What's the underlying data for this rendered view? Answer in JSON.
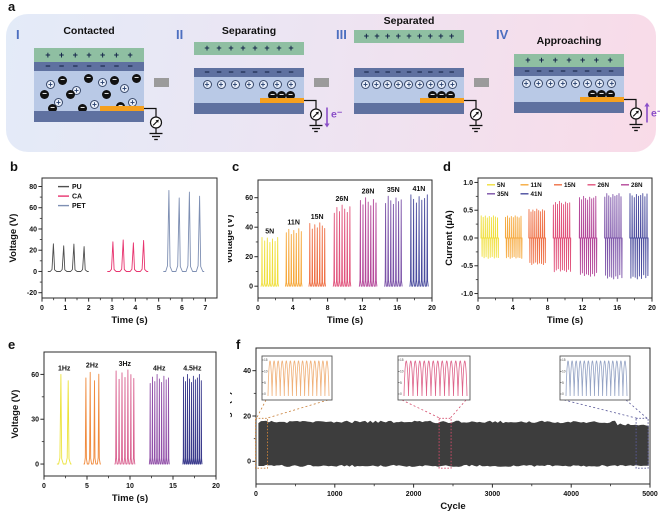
{
  "figure": {
    "panels": {
      "a": "a",
      "b": "b",
      "c": "c",
      "d": "d",
      "e": "e",
      "f": "f"
    }
  },
  "schematic": {
    "colors": {
      "bg_left": "#e3ebf8",
      "bg_mid": "#ede4f2",
      "bg_right": "#f9dbe8",
      "top_layer_green": "#8fbfa2",
      "film_slate": "#5f71a0",
      "substrate_light_blue": "#b9c9e6",
      "electrode_orange": "#f5a01e",
      "numeral_blue": "#4d6fc0",
      "electron_purple": "#8a4fc8",
      "arrow_gray": "#9b9b9b",
      "charge_navy": "#15254a"
    },
    "stages": [
      {
        "numeral": "I",
        "title": "Contacted",
        "top_plus_count": 7,
        "surface_minus_count": 7,
        "scatter_plus_count": 7,
        "scatter_minus_count": 10
      },
      {
        "numeral": "II",
        "title": "Separating",
        "top_plus_count": 8,
        "surface_minus_count": 8,
        "row_plus_count": 7,
        "trapped_minus_count": 3,
        "electron_label": "e⁻",
        "electron_dir": "down"
      },
      {
        "numeral": "III",
        "title": "Separated",
        "top_plus_count": 9,
        "surface_minus_count": 9,
        "row_plus_count": 9,
        "trapped_minus_count": 3
      },
      {
        "numeral": "IV",
        "title": "Approaching",
        "top_plus_count": 7,
        "surface_minus_count": 8,
        "row_plus_count": 8,
        "trapped_minus_count": 3,
        "electron_label": "e⁻",
        "electron_dir": "up"
      }
    ]
  },
  "chart_data": [
    {
      "id": "b",
      "type": "line",
      "series_type": "spike",
      "xlabel": "Time (s)",
      "ylabel": "Voltage (V)",
      "x": {
        "min": 0,
        "max": 7.5,
        "ticks": [
          0,
          1,
          2,
          3,
          4,
          5,
          6,
          7
        ],
        "minor": [
          0.5,
          1.5,
          2.5,
          3.5,
          4.5,
          5.5,
          6.5
        ]
      },
      "y": {
        "min": -25,
        "max": 88,
        "ticks": [
          -20,
          0,
          20,
          40,
          60,
          80
        ],
        "minor": [
          -10,
          10,
          30,
          50,
          70
        ]
      },
      "legend": {
        "orient": "v",
        "items": [
          {
            "label": "PU",
            "color": "#4f4f4f"
          },
          {
            "label": "CA",
            "color": "#e8346f"
          },
          {
            "label": "PET",
            "color": "#7e8fb3"
          }
        ]
      },
      "groups": [
        {
          "name": "PU",
          "color": "#4f4f4f",
          "x0": 0.25,
          "x1": 2.0,
          "peaks": 4,
          "amp": 26
        },
        {
          "name": "CA",
          "color": "#e8346f",
          "x0": 2.8,
          "x1": 4.55,
          "peaks": 4,
          "amp": 30
        },
        {
          "name": "PET",
          "color": "#7e8fb3",
          "x0": 5.2,
          "x1": 6.95,
          "peaks": 4,
          "amp": 77
        }
      ]
    },
    {
      "id": "c",
      "type": "line",
      "series_type": "spike",
      "show_group_labels": true,
      "xlabel": "Time (s)",
      "ylabel": "Voltage (V)",
      "x": {
        "min": 0,
        "max": 20,
        "ticks": [
          0,
          4,
          8,
          12,
          16,
          20
        ],
        "minor": [
          2,
          6,
          10,
          14,
          18
        ]
      },
      "y": {
        "min": -8,
        "max": 72,
        "ticks": [
          0,
          20,
          40,
          60
        ],
        "minor": [
          10,
          30,
          50
        ]
      },
      "groups": [
        {
          "label": "5N",
          "color": "#f0df3c",
          "x0": 0.3,
          "x1": 2.4,
          "peaks": 7,
          "amp": 33
        },
        {
          "label": "11N",
          "color": "#f6a93d",
          "x0": 3.1,
          "x1": 5.1,
          "peaks": 7,
          "amp": 39
        },
        {
          "label": "15N",
          "color": "#ef7147",
          "x0": 5.8,
          "x1": 7.8,
          "peaks": 7,
          "amp": 43
        },
        {
          "label": "26N",
          "color": "#e1537c",
          "x0": 8.6,
          "x1": 10.7,
          "peaks": 7,
          "amp": 55
        },
        {
          "label": "28N",
          "color": "#b4489a",
          "x0": 11.6,
          "x1": 13.7,
          "peaks": 7,
          "amp": 60
        },
        {
          "label": "35N",
          "color": "#7b52a8",
          "x0": 14.5,
          "x1": 16.6,
          "peaks": 7,
          "amp": 61
        },
        {
          "label": "41N",
          "color": "#4a4c9e",
          "x0": 17.4,
          "x1": 19.6,
          "peaks": 7,
          "amp": 62
        }
      ]
    },
    {
      "id": "d",
      "type": "line",
      "series_type": "bipolar",
      "xlabel": "Time (s)",
      "ylabel": "Current (µA)",
      "x": {
        "min": 0,
        "max": 20,
        "ticks": [
          0,
          4,
          8,
          12,
          16,
          20
        ],
        "minor": [
          2,
          6,
          10,
          14,
          18
        ]
      },
      "y": {
        "min": -1.08,
        "max": 1.08,
        "ticks": [
          1.0,
          0.5,
          0.0,
          -0.5,
          -1.0
        ],
        "minor": [
          0.75,
          0.25,
          -0.25,
          -0.75
        ],
        "tick_format": "fixed1"
      },
      "legend": {
        "orient": "rows",
        "rows": [
          5,
          2
        ],
        "items": [
          {
            "label": "5N",
            "color": "#f0df3c"
          },
          {
            "label": "11N",
            "color": "#f6a93d"
          },
          {
            "label": "15N",
            "color": "#ef7147"
          },
          {
            "label": "26N",
            "color": "#e1537c"
          },
          {
            "label": "28N",
            "color": "#b4489a"
          },
          {
            "label": "35N",
            "color": "#7b52a8"
          },
          {
            "label": "41N",
            "color": "#4a4c9e"
          }
        ]
      },
      "groups": [
        {
          "label": "5N",
          "color": "#f0df3c",
          "x0": 0.3,
          "x1": 2.4,
          "peaks": 9,
          "amp": 0.4
        },
        {
          "label": "11N",
          "color": "#f6a93d",
          "x0": 3.1,
          "x1": 5.1,
          "peaks": 9,
          "amp": 0.4
        },
        {
          "label": "15N",
          "color": "#ef7147",
          "x0": 5.8,
          "x1": 7.8,
          "peaks": 9,
          "amp": 0.52
        },
        {
          "label": "26N",
          "color": "#e1537c",
          "x0": 8.6,
          "x1": 10.7,
          "peaks": 9,
          "amp": 0.66
        },
        {
          "label": "28N",
          "color": "#b4489a",
          "x0": 11.6,
          "x1": 13.7,
          "peaks": 9,
          "amp": 0.75
        },
        {
          "label": "35N",
          "color": "#7b52a8",
          "x0": 14.5,
          "x1": 16.6,
          "peaks": 9,
          "amp": 0.8
        },
        {
          "label": "41N",
          "color": "#4a4c9e",
          "x0": 17.4,
          "x1": 19.6,
          "peaks": 9,
          "amp": 0.8
        }
      ]
    },
    {
      "id": "e",
      "type": "line",
      "series_type": "spike",
      "show_group_labels": true,
      "xlabel": "Time (s)",
      "ylabel": "Voltage (V)",
      "x": {
        "min": 0,
        "max": 20,
        "ticks": [
          0,
          5,
          10,
          15,
          20
        ],
        "minor": [
          2.5,
          7.5,
          12.5,
          17.5
        ]
      },
      "y": {
        "min": -8,
        "max": 75,
        "ticks": [
          0,
          30,
          60
        ],
        "minor": [
          15,
          45
        ]
      },
      "groups": [
        {
          "label": "1Hz",
          "color": "#ece33e",
          "x0": 1.5,
          "x1": 3.2,
          "peaks": 2,
          "amp": 60
        },
        {
          "label": "2Hz",
          "color": "#f08a3c",
          "x0": 4.6,
          "x1": 6.6,
          "peaks": 4,
          "amp": 62
        },
        {
          "label": "3Hz",
          "color": "#d9608f",
          "x0": 8.2,
          "x1": 10.6,
          "peaks": 7,
          "amp": 63
        },
        {
          "label": "4Hz",
          "color": "#9150a8",
          "x0": 12.2,
          "x1": 14.6,
          "peaks": 9,
          "amp": 60
        },
        {
          "label": "4.5Hz",
          "color": "#3a3a8c",
          "x0": 16.1,
          "x1": 18.4,
          "peaks": 10,
          "amp": 60
        }
      ]
    },
    {
      "id": "f",
      "type": "area",
      "series_type": "durability",
      "xlabel": "Cycle",
      "ylabel": "Voltage (V)",
      "x": {
        "min": 0,
        "max": 5000,
        "ticks": [
          0,
          1000,
          2000,
          3000,
          4000,
          5000
        ],
        "minor": [
          500,
          1500,
          2500,
          3500,
          4500
        ]
      },
      "y": {
        "min": -10,
        "max": 50,
        "ticks": [
          0,
          20,
          40
        ],
        "minor": [
          10,
          30
        ]
      },
      "band": {
        "x0": 30,
        "x1": 4985,
        "top": 17.4,
        "top_end": 16.2,
        "taper_x": 4560,
        "bottom": -2.0,
        "color": "#3d3d3d"
      },
      "insets": [
        {
          "waveform_color": "#f0b078",
          "marker_color": "#c8803a",
          "sample_x": 70,
          "cycles": 15,
          "yticks": [
            "15",
            "10",
            "5",
            "0"
          ]
        },
        {
          "waveform_color": "#dd6289",
          "marker_color": "#d44a6a",
          "sample_x": 2400,
          "cycles": 14,
          "yticks": [
            "15",
            "10",
            "5",
            "0"
          ]
        },
        {
          "waveform_color": "#93a2c4",
          "marker_color": "#5a5a9a",
          "sample_x": 4900,
          "cycles": 15,
          "yticks": [
            "15",
            "10",
            "5",
            "0"
          ]
        }
      ]
    }
  ]
}
